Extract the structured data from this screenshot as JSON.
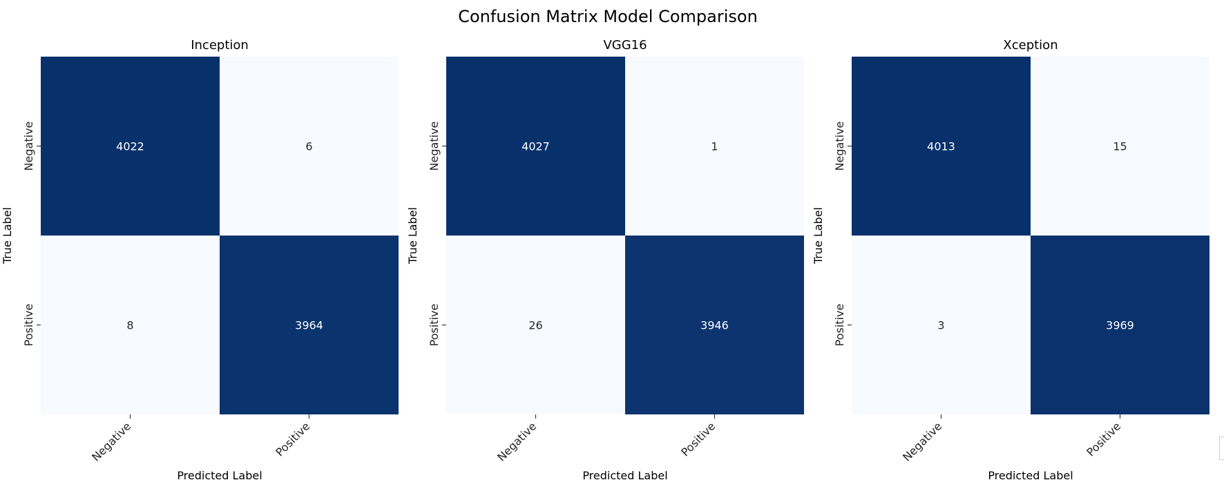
{
  "chart_data": {
    "type": "heatmap",
    "title": "Confusion Matrix Model Comparison",
    "colors": {
      "low": "#f7fbff",
      "high": "#08306b",
      "text_on_dark": "#ffffff",
      "text_on_light": "#262626"
    },
    "panels": [
      {
        "title": "Inception",
        "xlabel": "Predicted Label",
        "ylabel": "True Label",
        "x_categories": [
          "Negative",
          "Positive"
        ],
        "y_categories": [
          "Negative",
          "Positive"
        ],
        "matrix": [
          [
            4022,
            6
          ],
          [
            8,
            3964
          ]
        ]
      },
      {
        "title": "VGG16",
        "xlabel": "Predicted Label",
        "ylabel": "True Label",
        "x_categories": [
          "Negative",
          "Positive"
        ],
        "y_categories": [
          "Negative",
          "Positive"
        ],
        "matrix": [
          [
            4027,
            1
          ],
          [
            26,
            3946
          ]
        ]
      },
      {
        "title": "Xception",
        "xlabel": "Predicted Label",
        "ylabel": "True Label",
        "x_categories": [
          "Negative",
          "Positive"
        ],
        "y_categories": [
          "Negative",
          "Positive"
        ],
        "matrix": [
          [
            4013,
            15
          ],
          [
            3,
            3969
          ]
        ]
      }
    ]
  }
}
